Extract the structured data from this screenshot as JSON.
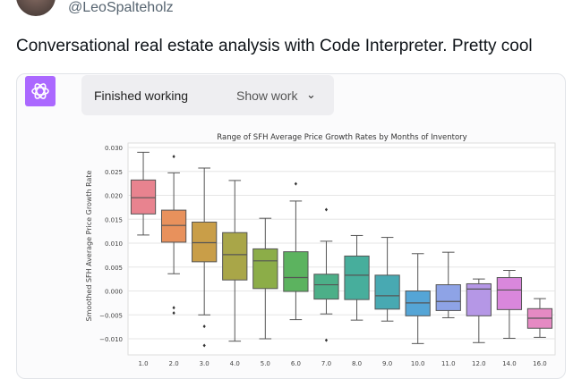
{
  "tweet": {
    "handle": "@LeoSpalteholz",
    "text": "Conversational real estate analysis with Code Interpreter.  Pretty cool"
  },
  "chatgpt": {
    "status": "Finished working",
    "show_work": "Show work"
  },
  "chart_data": {
    "type": "box",
    "title": "Range of SFH Average Price Growth Rates by Months of Inventory",
    "xlabel": "",
    "ylabel": "Smoothed SFH Average Price Growth Rate",
    "ylim": [
      -0.0125,
      0.0305
    ],
    "yticks": [
      "0.030",
      "0.025",
      "0.020",
      "0.015",
      "0.010",
      "0.005",
      "0.000",
      "−0.005",
      "−0.010"
    ],
    "ytick_values": [
      0.03,
      0.025,
      0.02,
      0.015,
      0.01,
      0.005,
      0,
      -0.005,
      -0.01
    ],
    "categories": [
      "1.0",
      "2.0",
      "3.0",
      "4.0",
      "5.0",
      "6.0",
      "7.0",
      "8.0",
      "9.0",
      "10.0",
      "11.0",
      "12.0",
      "14.0",
      "16.0"
    ],
    "boxes": [
      {
        "low": 0.0117,
        "q1": 0.0161,
        "median": 0.0195,
        "q3": 0.0232,
        "high": 0.029,
        "outliers": []
      },
      {
        "low": 0.0036,
        "q1": 0.0102,
        "median": 0.0137,
        "q3": 0.0169,
        "high": 0.0247,
        "outliers": [
          0.0281,
          -0.0035,
          -0.0046
        ]
      },
      {
        "low": -0.005,
        "q1": 0.0061,
        "median": 0.0101,
        "q3": 0.0144,
        "high": 0.0257,
        "outliers": [
          -0.0074,
          -0.0114
        ]
      },
      {
        "low": -0.0105,
        "q1": 0.0023,
        "median": 0.0076,
        "q3": 0.0122,
        "high": 0.0231,
        "outliers": []
      },
      {
        "low": -0.01,
        "q1": 0.0005,
        "median": 0.0063,
        "q3": 0.0088,
        "high": 0.0152,
        "outliers": []
      },
      {
        "low": -0.006,
        "q1": -0.0001,
        "median": 0.0028,
        "q3": 0.0082,
        "high": 0.0188,
        "outliers": [
          0.0224
        ]
      },
      {
        "low": -0.0048,
        "q1": -0.0017,
        "median": 0.0013,
        "q3": 0.0035,
        "high": 0.0104,
        "outliers": [
          0.017,
          -0.0103
        ]
      },
      {
        "low": -0.0061,
        "q1": -0.0018,
        "median": 0.0033,
        "q3": 0.0073,
        "high": 0.0116,
        "outliers": []
      },
      {
        "low": -0.0063,
        "q1": -0.0038,
        "median": -0.001,
        "q3": 0.0033,
        "high": 0.0112,
        "outliers": []
      },
      {
        "low": -0.011,
        "q1": -0.0052,
        "median": -0.0025,
        "q3": 0.0,
        "high": 0.0078,
        "outliers": []
      },
      {
        "low": -0.0056,
        "q1": -0.0041,
        "median": -0.0022,
        "q3": 0.0013,
        "high": 0.0081,
        "outliers": []
      },
      {
        "low": -0.0108,
        "q1": -0.0052,
        "median": 0.0004,
        "q3": 0.0015,
        "high": 0.0025,
        "outliers": []
      },
      {
        "low": -0.0099,
        "q1": -0.0039,
        "median": 0.0002,
        "q3": 0.0028,
        "high": 0.0043,
        "outliers": []
      },
      {
        "low": -0.0097,
        "q1": -0.0078,
        "median": -0.0057,
        "q3": -0.0037,
        "high": -0.0016,
        "outliers": []
      }
    ],
    "colors": [
      "#e8838f",
      "#e8915c",
      "#c99e48",
      "#a9a648",
      "#8cad48",
      "#5cb35f",
      "#4caf88",
      "#47ae9c",
      "#48a9b2",
      "#55a5d6",
      "#8ea3e6",
      "#b597e6",
      "#d987dc",
      "#e58ac3"
    ],
    "grid": true,
    "legend": "none"
  }
}
